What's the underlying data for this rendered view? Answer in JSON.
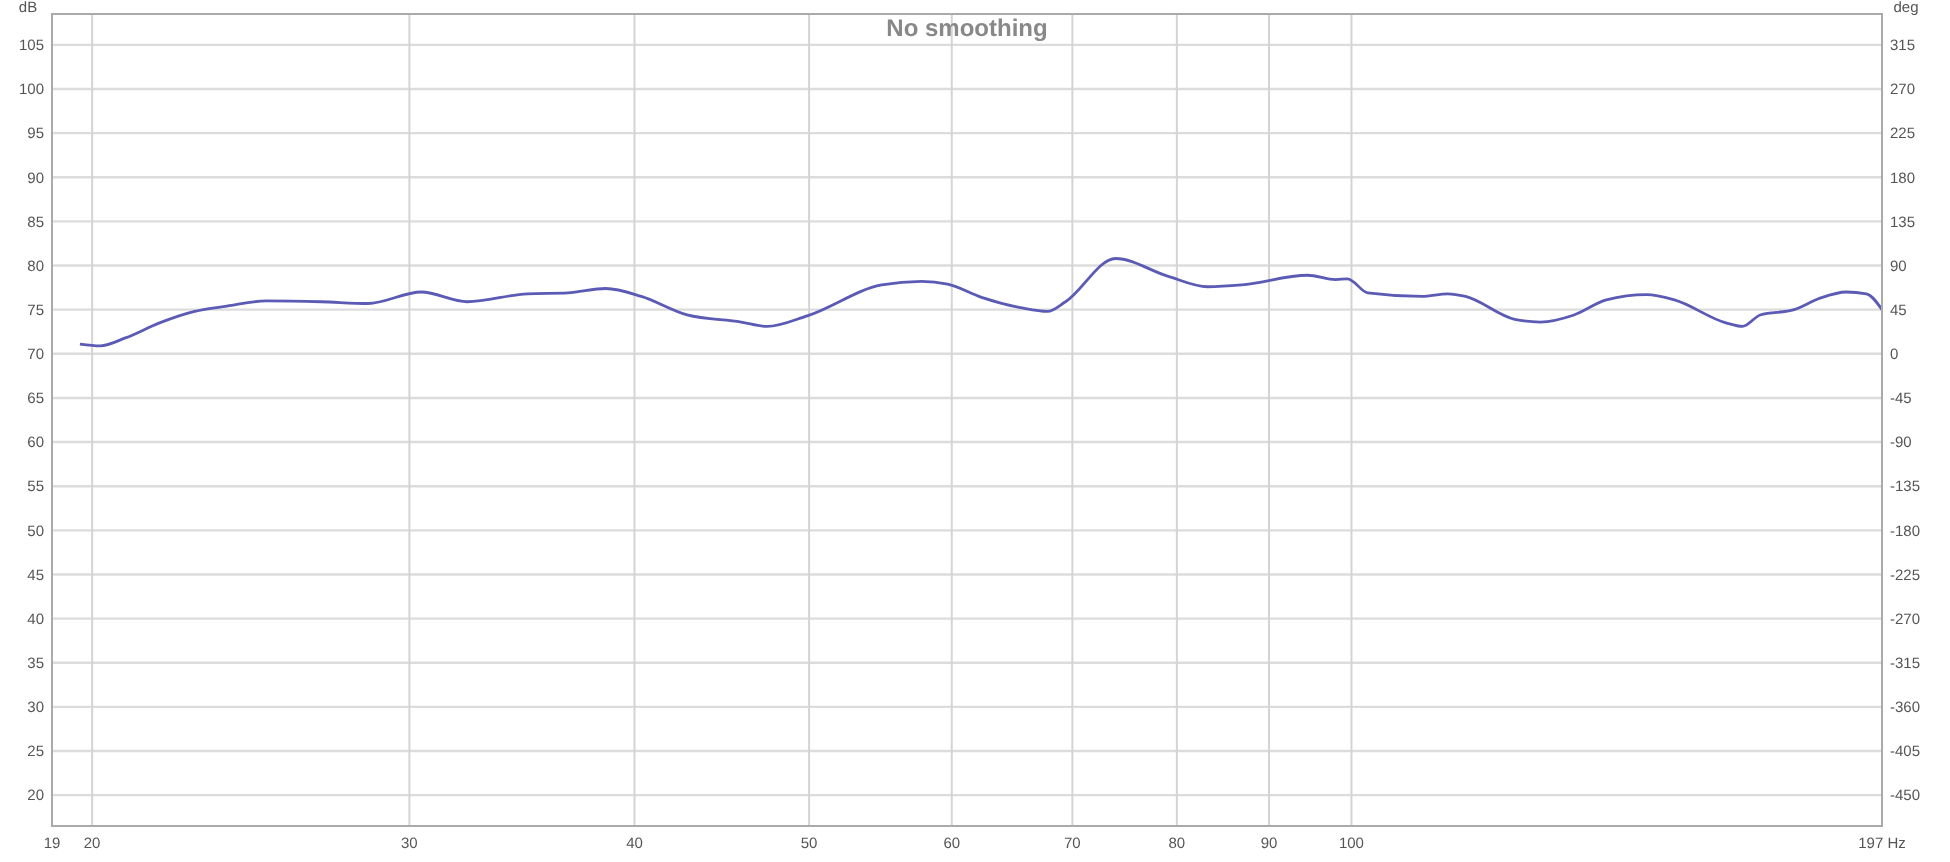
{
  "chart_data": {
    "type": "line",
    "title": "No smoothing",
    "ylabel": "dB",
    "y2label": "deg",
    "log": "x",
    "x": [
      19.69,
      20.21,
      20.87,
      21.8,
      22.8,
      23.76,
      24.99,
      26.8,
      28.45,
      30.46,
      32.3,
      34.88,
      36.73,
      38.55,
      40.35,
      42.78,
      45.84,
      47.38,
      49.88,
      54.86,
      57.73,
      59.68,
      62.33,
      65.62,
      67.81,
      69.39,
      73.97,
      79.06,
      83.21,
      86.9,
      94.55,
      98,
      99.5,
      102.1,
      109.4,
      113.1,
      115.7,
      123.2,
      127.3,
      132.9,
      138.5,
      145.8,
      151.1,
      161.4,
      164.8,
      168.6,
      176.1,
      182,
      188.2,
      193.1,
      197
    ],
    "series": [
      {
        "color": "#5b5bb5",
        "values": [
          71.1,
          70.9,
          71.8,
          73.5,
          74.8,
          75.4,
          76,
          75.9,
          75.7,
          77,
          75.9,
          76.8,
          76.9,
          77.4,
          76.5,
          74.4,
          73.6,
          73.1,
          74.3,
          77.8,
          78.2,
          77.9,
          76.4,
          75.2,
          74.8,
          75.9,
          80.8,
          78.8,
          77.6,
          77.8,
          78.9,
          78.4,
          78.5,
          76.9,
          76.5,
          76.8,
          76.5,
          73.9,
          73.6,
          74.4,
          76.1,
          76.7,
          76.1,
          73.5,
          73.1,
          74.4,
          75,
          76.3,
          77,
          76.8,
          75
        ]
      }
    ],
    "xlim": [
      19,
      197
    ],
    "xticks": [
      19,
      20,
      30,
      40,
      50,
      60,
      70,
      80,
      90,
      100,
      {
        "value": 197,
        "label": "197 Hz"
      }
    ],
    "ylim": [
      16.5,
      108.5
    ],
    "yticks": [
      20,
      25,
      30,
      35,
      40,
      45,
      50,
      55,
      60,
      65,
      70,
      75,
      80,
      85,
      90,
      95,
      100,
      105
    ],
    "y2lim": [
      -481.5,
      346.5
    ],
    "y2ticks": [
      -450,
      -405,
      -360,
      -315,
      -270,
      -225,
      -180,
      -135,
      -90,
      -45,
      0,
      45,
      90,
      135,
      180,
      225,
      270,
      315
    ],
    "grid": true,
    "line_style": "solid",
    "marker": "none"
  }
}
